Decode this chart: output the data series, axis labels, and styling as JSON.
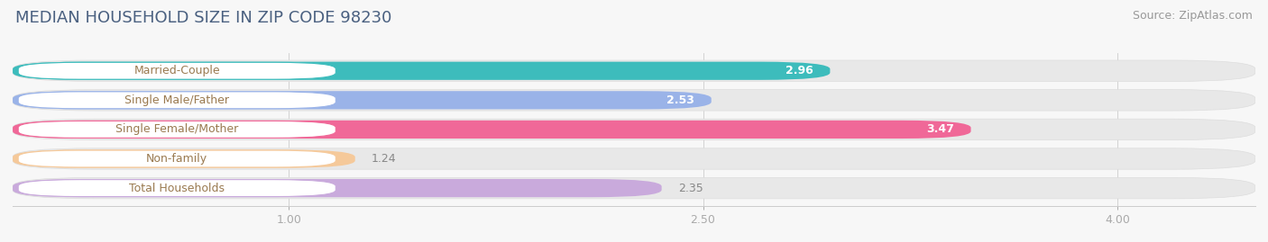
{
  "title": "MEDIAN HOUSEHOLD SIZE IN ZIP CODE 98230",
  "source": "Source: ZipAtlas.com",
  "categories": [
    "Married-Couple",
    "Single Male/Father",
    "Single Female/Mother",
    "Non-family",
    "Total Households"
  ],
  "values": [
    2.96,
    2.53,
    3.47,
    1.24,
    2.35
  ],
  "bar_colors": [
    "#3dbcbc",
    "#9ab3e8",
    "#f06898",
    "#f5c99a",
    "#c9aadc"
  ],
  "bar_edge_colors": [
    "#3dbcbc",
    "#9ab3e8",
    "#f06898",
    "#f5c99a",
    "#c9aadc"
  ],
  "value_colors": [
    "#ffffff",
    "#555555",
    "#ffffff",
    "#555555",
    "#555555"
  ],
  "xlim_min": 0.0,
  "xlim_max": 4.5,
  "x_axis_min": 1.0,
  "x_axis_max": 4.0,
  "xticks": [
    1.0,
    2.5,
    4.0
  ],
  "xtick_labels": [
    "1.00",
    "2.50",
    "4.00"
  ],
  "background_color": "#f7f7f7",
  "bar_background_color": "#e8e8e8",
  "bar_bg_edge_color": "#dddddd",
  "title_fontsize": 13,
  "source_fontsize": 9,
  "label_fontsize": 9,
  "value_fontsize": 9,
  "tick_fontsize": 9,
  "title_color": "#4a6080",
  "source_color": "#999999",
  "tick_color": "#aaaaaa",
  "label_box_color": "#ffffff",
  "label_text_color": "#9a7a50"
}
